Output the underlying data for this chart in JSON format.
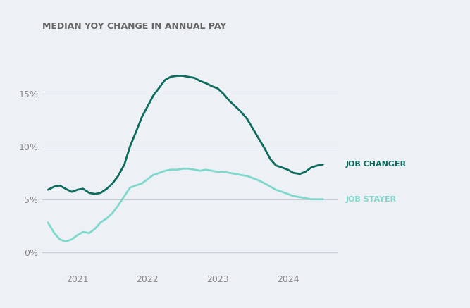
{
  "title": "MEDIAN YOY CHANGE IN ANNUAL PAY",
  "background_color": "#edf1f5",
  "plot_bg_color": "#edf1f5",
  "grid_color": "#c8cdd4",
  "job_changer_color": "#0d6b5e",
  "job_stayer_color": "#7fd8cc",
  "job_changer_label": "JOB CHANGER",
  "job_stayer_label": "JOB STAYER",
  "ylim": [
    -0.018,
    0.195
  ],
  "yticks": [
    0.0,
    0.05,
    0.1,
    0.15
  ],
  "ytick_labels": [
    "0%",
    "5%",
    "10%",
    "15%"
  ],
  "line_width": 2.0,
  "job_changer": {
    "x": [
      2020.58,
      2020.67,
      2020.75,
      2020.83,
      2020.92,
      2021.0,
      2021.08,
      2021.17,
      2021.25,
      2021.33,
      2021.42,
      2021.5,
      2021.58,
      2021.67,
      2021.75,
      2021.83,
      2021.92,
      2022.0,
      2022.08,
      2022.17,
      2022.25,
      2022.33,
      2022.42,
      2022.5,
      2022.58,
      2022.67,
      2022.75,
      2022.83,
      2022.92,
      2023.0,
      2023.08,
      2023.17,
      2023.25,
      2023.33,
      2023.42,
      2023.5,
      2023.58,
      2023.67,
      2023.75,
      2023.83,
      2023.92,
      2024.0,
      2024.08,
      2024.17,
      2024.25,
      2024.33,
      2024.42,
      2024.5
    ],
    "y": [
      0.059,
      0.062,
      0.063,
      0.06,
      0.057,
      0.059,
      0.06,
      0.056,
      0.055,
      0.056,
      0.06,
      0.065,
      0.072,
      0.083,
      0.1,
      0.113,
      0.128,
      0.138,
      0.148,
      0.156,
      0.163,
      0.166,
      0.167,
      0.167,
      0.166,
      0.165,
      0.162,
      0.16,
      0.157,
      0.155,
      0.15,
      0.143,
      0.138,
      0.133,
      0.126,
      0.117,
      0.108,
      0.098,
      0.088,
      0.082,
      0.08,
      0.078,
      0.075,
      0.074,
      0.076,
      0.08,
      0.082,
      0.083
    ]
  },
  "job_stayer": {
    "x": [
      2020.58,
      2020.67,
      2020.75,
      2020.83,
      2020.92,
      2021.0,
      2021.08,
      2021.17,
      2021.25,
      2021.33,
      2021.42,
      2021.5,
      2021.58,
      2021.67,
      2021.75,
      2021.83,
      2021.92,
      2022.0,
      2022.08,
      2022.17,
      2022.25,
      2022.33,
      2022.42,
      2022.5,
      2022.58,
      2022.67,
      2022.75,
      2022.83,
      2022.92,
      2023.0,
      2023.08,
      2023.17,
      2023.25,
      2023.33,
      2023.42,
      2023.5,
      2023.58,
      2023.67,
      2023.75,
      2023.83,
      2023.92,
      2024.0,
      2024.08,
      2024.17,
      2024.25,
      2024.33,
      2024.42,
      2024.5
    ],
    "y": [
      0.028,
      0.018,
      0.012,
      0.01,
      0.012,
      0.016,
      0.019,
      0.018,
      0.022,
      0.028,
      0.032,
      0.037,
      0.044,
      0.053,
      0.061,
      0.063,
      0.065,
      0.069,
      0.073,
      0.075,
      0.077,
      0.078,
      0.078,
      0.079,
      0.079,
      0.078,
      0.077,
      0.078,
      0.077,
      0.076,
      0.076,
      0.075,
      0.074,
      0.073,
      0.072,
      0.07,
      0.068,
      0.065,
      0.062,
      0.059,
      0.057,
      0.055,
      0.053,
      0.052,
      0.051,
      0.05,
      0.05,
      0.05
    ]
  },
  "xticks": [
    2021.0,
    2022.0,
    2023.0,
    2024.0
  ],
  "xtick_labels": [
    "2021",
    "2022",
    "2023",
    "2024"
  ],
  "xlim": [
    2020.5,
    2024.72
  ],
  "title_fontsize": 9,
  "tick_fontsize": 9,
  "label_fontsize": 8,
  "title_color": "#666666",
  "tick_color": "#888888"
}
